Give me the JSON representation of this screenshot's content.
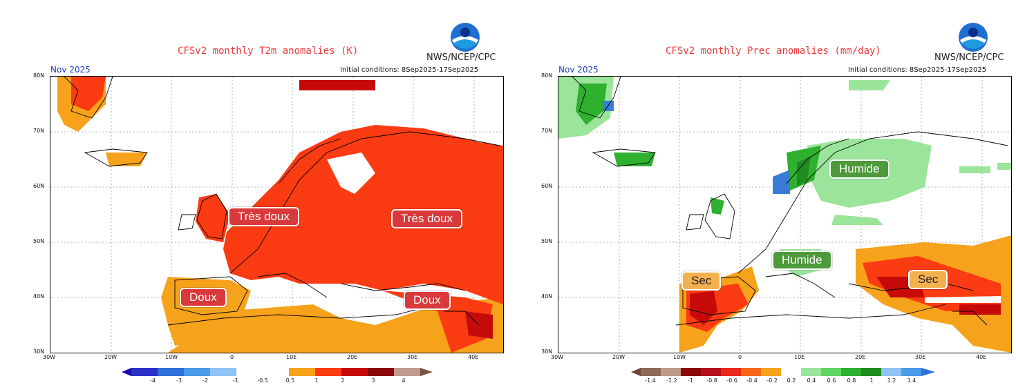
{
  "left": {
    "title": "CFSv2 monthly T2m anomalies (K)",
    "org": "NWS/NCEP/CPC",
    "month": "Nov 2025",
    "init": "Initial conditions: 8Sep2025-17Sep2025",
    "lat_labels": [
      "80N",
      "70N",
      "60N",
      "50N",
      "40N",
      "30N"
    ],
    "lon_labels": [
      "30W",
      "20W",
      "10W",
      "0",
      "10E",
      "20E",
      "30E",
      "40E"
    ],
    "badges": [
      {
        "text": "Très doux",
        "kind": "warm"
      },
      {
        "text": "Très doux",
        "kind": "warm"
      },
      {
        "text": "Doux",
        "kind": "warm"
      },
      {
        "text": "Doux",
        "kind": "warm"
      }
    ],
    "colorbar": {
      "labels": [
        "-4",
        "-3",
        "-2",
        "-1",
        "-0.5",
        "0.5",
        "1",
        "2",
        "3",
        "4"
      ],
      "colors": [
        "#1a0ea8",
        "#2a32c8",
        "#2f6fd8",
        "#4a9be8",
        "#8ec3f4",
        "#ffffff",
        "#f7a21b",
        "#fb3b12",
        "#c60a0a",
        "#8a0a0a",
        "#c29a90",
        "#7a5040"
      ]
    }
  },
  "right": {
    "title": "CFSv2 monthly Prec anomalies (mm/day)",
    "org": "NWS/NCEP/CPC",
    "month": "Nov 2025",
    "init": "Initial conditions: 8Sep2025-17Sep2025",
    "lat_labels": [
      "80N",
      "70N",
      "60N",
      "50N",
      "40N",
      "30N"
    ],
    "lon_labels": [
      "30W",
      "20W",
      "10W",
      "0",
      "10E",
      "20E",
      "30E",
      "40E"
    ],
    "badges": [
      {
        "text": "Humide",
        "kind": "humid"
      },
      {
        "text": "Humide",
        "kind": "humid"
      },
      {
        "text": "Sec",
        "kind": "dry"
      },
      {
        "text": "Sec",
        "kind": "dry"
      }
    ],
    "colorbar": {
      "labels": [
        "-1.4",
        "-1.2",
        "-1",
        "-0.8",
        "-0.6",
        "-0.4",
        "-0.2",
        "0.2",
        "0.4",
        "0.6",
        "0.8",
        "1",
        "1.2",
        "1.4"
      ],
      "colors": [
        "#6b4a3a",
        "#8f6a58",
        "#c09a88",
        "#8a0a0a",
        "#b5121b",
        "#e8291c",
        "#f7681a",
        "#f7a21b",
        "#ffffff",
        "#9be59b",
        "#5fd45f",
        "#2fb02f",
        "#1e8c1e",
        "#8ec3f4",
        "#4a9be8",
        "#2f6fd8"
      ]
    }
  },
  "colors": {
    "orange": "#f7a21b",
    "red": "#fb3b12",
    "darkred": "#c60a0a",
    "lightgreen": "#9be59b",
    "green": "#2fb02f",
    "darkgreen": "#1e8c1e",
    "blue": "#3a7bd5"
  }
}
